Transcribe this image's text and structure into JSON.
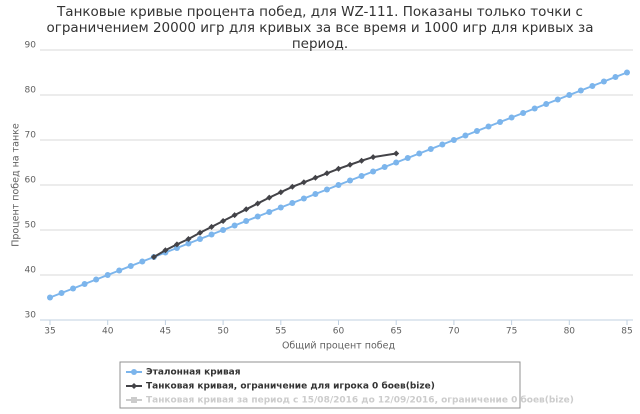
{
  "chart_data": {
    "type": "line",
    "title": "Танковые кривые процента побед, для WZ-111. Показаны только точки с ограничением 20000 игр для кривых за все время и 1000 игр для кривых за период.",
    "xlabel": "Общий процент побед",
    "ylabel": "Процент побед на танке",
    "xlim": [
      35,
      85
    ],
    "ylim": [
      30,
      90
    ],
    "xticks": [
      35,
      40,
      45,
      50,
      55,
      60,
      65,
      70,
      75,
      80,
      85
    ],
    "yticks": [
      30,
      40,
      50,
      60,
      70,
      80,
      90
    ],
    "grid": true,
    "series": [
      {
        "name": "Эталонная кривая",
        "color": "#7cb5ec",
        "marker": "circle",
        "x": [
          35,
          36,
          37,
          38,
          39,
          40,
          41,
          42,
          43,
          44,
          45,
          46,
          47,
          48,
          49,
          50,
          51,
          52,
          53,
          54,
          55,
          56,
          57,
          58,
          59,
          60,
          61,
          62,
          63,
          64,
          65,
          66,
          67,
          68,
          69,
          70,
          71,
          72,
          73,
          74,
          75,
          76,
          77,
          78,
          79,
          80,
          81,
          82,
          83,
          84,
          85
        ],
        "values": [
          35,
          36,
          37,
          38,
          39,
          40,
          41,
          42,
          43,
          44,
          45,
          46,
          47,
          48,
          49,
          50,
          51,
          52,
          53,
          54,
          55,
          56,
          57,
          58,
          59,
          60,
          61,
          62,
          63,
          64,
          65,
          66,
          67,
          68,
          69,
          70,
          71,
          72,
          73,
          74,
          75,
          76,
          77,
          78,
          79,
          80,
          81,
          82,
          83,
          84,
          85
        ]
      },
      {
        "name": "Танковая кривая, ограничение для игрока 0 боев(bize)",
        "color": "#434348",
        "marker": "diamond",
        "x": [
          44,
          45,
          46,
          47,
          48,
          49,
          50,
          51,
          52,
          53,
          54,
          55,
          56,
          57,
          58,
          59,
          60,
          61,
          62,
          63,
          65
        ],
        "values": [
          44.0,
          45.5,
          46.8,
          48.0,
          49.4,
          50.7,
          52.0,
          53.3,
          54.6,
          55.9,
          57.2,
          58.4,
          59.6,
          60.6,
          61.6,
          62.6,
          63.6,
          64.5,
          65.4,
          66.2,
          67.0
        ]
      },
      {
        "name": "Танковая кривая за период с 15/08/2016 до 12/09/2016, ограничение 0 боев(bize)",
        "color": "#cccccc",
        "marker": "square",
        "hidden": true,
        "x": [],
        "values": []
      }
    ]
  }
}
